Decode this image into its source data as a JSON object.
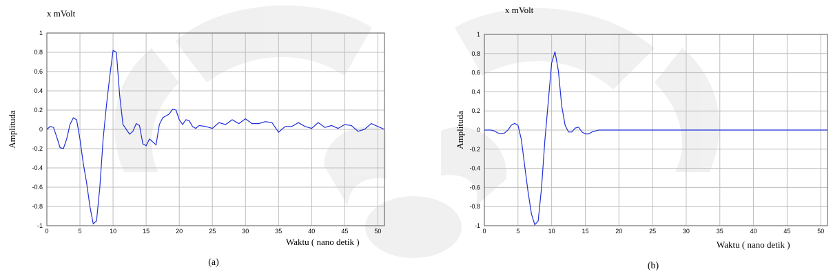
{
  "chart_data": [
    {
      "type": "line",
      "title": "x mVolt",
      "xlabel": "Waktu  ( nano detik )",
      "ylabel": "Amplituda",
      "caption": "(a)",
      "xlim": [
        0,
        51
      ],
      "ylim": [
        -1,
        1
      ],
      "xticks": [
        0,
        5,
        10,
        15,
        20,
        25,
        30,
        35,
        40,
        45,
        50
      ],
      "yticks": [
        1,
        0.8,
        0.6,
        0.4,
        0.2,
        0,
        -0.2,
        -0.4,
        -0.6,
        -0.8,
        -1
      ],
      "grid": true,
      "color": "#1f2fd6",
      "series": [
        {
          "x": [
            0,
            0.5,
            1,
            1.5,
            2,
            2.5,
            3,
            3.5,
            4,
            4.5,
            5,
            5.5,
            6,
            6.5,
            7,
            7.5,
            8,
            8.5,
            9,
            9.5,
            10,
            10.5,
            11,
            11.5,
            12,
            12.5,
            13,
            13.5,
            14,
            14.5,
            15,
            15.5,
            16,
            16.5,
            17,
            17.5,
            18,
            18.5,
            19,
            19.5,
            20,
            20.5,
            21,
            21.5,
            22,
            22.5,
            23,
            24,
            25,
            26,
            27,
            28,
            29,
            30,
            31,
            32,
            33,
            34,
            35,
            36,
            37,
            38,
            39,
            40,
            41,
            42,
            43,
            44,
            45,
            46,
            47,
            48,
            49,
            50,
            51
          ],
          "y": [
            0,
            0.03,
            0.02,
            -0.08,
            -0.19,
            -0.2,
            -0.1,
            0.05,
            0.12,
            0.1,
            -0.1,
            -0.35,
            -0.55,
            -0.8,
            -0.98,
            -0.95,
            -0.6,
            -0.1,
            0.25,
            0.55,
            0.82,
            0.8,
            0.35,
            0.05,
            0.0,
            -0.05,
            -0.02,
            0.06,
            0.04,
            -0.15,
            -0.17,
            -0.1,
            -0.13,
            -0.16,
            0.05,
            0.12,
            0.14,
            0.16,
            0.21,
            0.2,
            0.1,
            0.05,
            0.1,
            0.09,
            0.03,
            0.01,
            0.04,
            0.03,
            0.01,
            0.07,
            0.05,
            0.1,
            0.06,
            0.11,
            0.06,
            0.06,
            0.08,
            0.07,
            -0.03,
            0.03,
            0.03,
            0.07,
            0.03,
            0.01,
            0.07,
            0.02,
            0.04,
            0.01,
            0.05,
            0.04,
            -0.02,
            0.0,
            0.06,
            0.03,
            0.0
          ]
        }
      ]
    },
    {
      "type": "line",
      "title": "x mVolt",
      "xlabel": "Waktu  ( nano detik )",
      "ylabel": "Amplituda",
      "caption": "(b)",
      "xlim": [
        0,
        51
      ],
      "ylim": [
        -1,
        1
      ],
      "xticks": [
        0,
        5,
        10,
        15,
        20,
        25,
        30,
        35,
        40,
        45,
        50
      ],
      "yticks": [
        1,
        0.8,
        0.6,
        0.4,
        0.2,
        0,
        -0.2,
        -0.4,
        -0.6,
        -0.8,
        -1
      ],
      "grid": true,
      "color": "#1f2fd6",
      "series": [
        {
          "x": [
            0,
            1,
            1.5,
            2,
            2.5,
            3,
            3.5,
            4,
            4.5,
            5,
            5.5,
            6,
            6.5,
            7,
            7.5,
            8,
            8.5,
            9,
            9.5,
            10,
            10.5,
            11,
            11.5,
            12,
            12.5,
            13,
            13.5,
            14,
            14.5,
            15,
            15.5,
            16,
            17,
            18,
            51
          ],
          "y": [
            0,
            0.0,
            -0.01,
            -0.03,
            -0.04,
            -0.03,
            0.0,
            0.05,
            0.07,
            0.05,
            -0.1,
            -0.38,
            -0.65,
            -0.88,
            -0.99,
            -0.95,
            -0.6,
            -0.1,
            0.3,
            0.7,
            0.82,
            0.62,
            0.25,
            0.05,
            -0.02,
            -0.02,
            0.02,
            0.03,
            -0.02,
            -0.04,
            -0.04,
            -0.02,
            0.0,
            0.0,
            0.0
          ]
        }
      ]
    }
  ]
}
